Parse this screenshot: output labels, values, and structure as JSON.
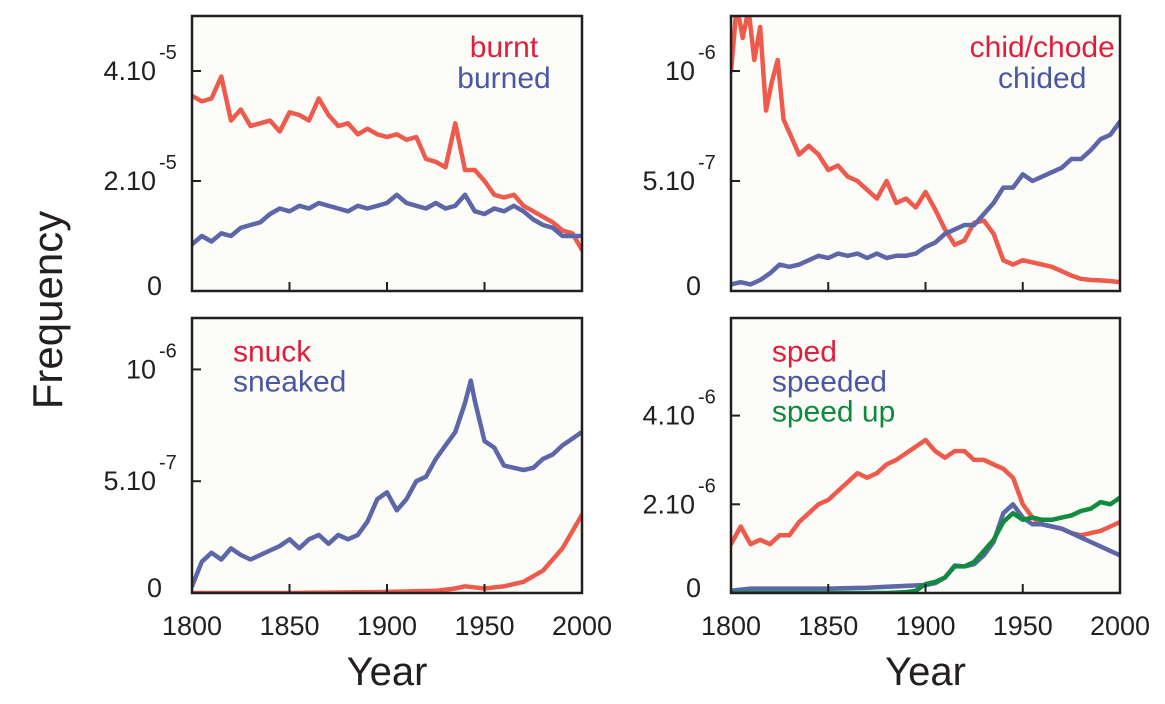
{
  "figure": {
    "ylabel": "Frequency",
    "xlabel": "Year",
    "colors": {
      "red": "#ee5a4c",
      "blue": "#5c66a8",
      "green": "#118c3e",
      "red_text": "#e21d3c",
      "blue_text": "#4a57a3",
      "green_text": "#0f8a3c",
      "plot_bg": "#fcfcf8"
    }
  },
  "chart_data": [
    {
      "type": "line",
      "panel": "top-left",
      "xlim": [
        1800,
        2000
      ],
      "ylim": [
        0,
        5e-05
      ],
      "yticks": [
        {
          "value": 0,
          "base": "0",
          "exp": ""
        },
        {
          "value": 2e-05,
          "base": "2.10",
          "exp": "-5"
        },
        {
          "value": 4e-05,
          "base": "4.10",
          "exp": "-5"
        }
      ],
      "xticks": [
        1800,
        1850,
        1900,
        1950,
        2000
      ],
      "xtick_labels": [],
      "xlabel": "",
      "legend_position": "top-right",
      "series": [
        {
          "name": "burnt",
          "color": "red",
          "x": [
            1800,
            1805,
            1810,
            1815,
            1820,
            1825,
            1830,
            1835,
            1840,
            1845,
            1850,
            1855,
            1860,
            1865,
            1870,
            1875,
            1880,
            1885,
            1890,
            1895,
            1900,
            1905,
            1910,
            1915,
            1920,
            1925,
            1930,
            1935,
            1940,
            1945,
            1950,
            1955,
            1960,
            1965,
            1970,
            1975,
            1980,
            1985,
            1990,
            1995,
            2000
          ],
          "y": [
            3.55e-05,
            3.45e-05,
            3.5e-05,
            3.9e-05,
            3.1e-05,
            3.3e-05,
            3e-05,
            3.05e-05,
            3.1e-05,
            2.9e-05,
            3.25e-05,
            3.2e-05,
            3.1e-05,
            3.5e-05,
            3.2e-05,
            3e-05,
            3.05e-05,
            2.85e-05,
            2.95e-05,
            2.85e-05,
            2.8e-05,
            2.85e-05,
            2.75e-05,
            2.8e-05,
            2.4e-05,
            2.35e-05,
            2.25e-05,
            3.05e-05,
            2.2e-05,
            2.2e-05,
            2e-05,
            1.75e-05,
            1.7e-05,
            1.75e-05,
            1.55e-05,
            1.45e-05,
            1.35e-05,
            1.25e-05,
            1.1e-05,
            1.05e-05,
            7.5e-06
          ]
        },
        {
          "name": "burned",
          "color": "blue",
          "x": [
            1800,
            1805,
            1810,
            1815,
            1820,
            1825,
            1830,
            1835,
            1840,
            1845,
            1850,
            1855,
            1860,
            1865,
            1870,
            1875,
            1880,
            1885,
            1890,
            1895,
            1900,
            1905,
            1910,
            1915,
            1920,
            1925,
            1930,
            1935,
            1940,
            1945,
            1950,
            1955,
            1960,
            1965,
            1970,
            1975,
            1980,
            1985,
            1990,
            1995,
            2000
          ],
          "y": [
            8.5e-06,
            1e-05,
            9e-06,
            1.05e-05,
            1e-05,
            1.15e-05,
            1.2e-05,
            1.25e-05,
            1.4e-05,
            1.5e-05,
            1.45e-05,
            1.55e-05,
            1.5e-05,
            1.6e-05,
            1.55e-05,
            1.5e-05,
            1.45e-05,
            1.55e-05,
            1.5e-05,
            1.55e-05,
            1.6e-05,
            1.75e-05,
            1.6e-05,
            1.55e-05,
            1.5e-05,
            1.6e-05,
            1.5e-05,
            1.55e-05,
            1.75e-05,
            1.45e-05,
            1.4e-05,
            1.5e-05,
            1.45e-05,
            1.55e-05,
            1.45e-05,
            1.3e-05,
            1.2e-05,
            1.15e-05,
            1e-05,
            1e-05,
            1e-05
          ]
        }
      ]
    },
    {
      "type": "line",
      "panel": "top-right",
      "xlim": [
        1800,
        2000
      ],
      "ylim": [
        0,
        1.25e-06
      ],
      "yticks": [
        {
          "value": 0,
          "base": "0",
          "exp": ""
        },
        {
          "value": 5e-07,
          "base": "5.10",
          "exp": "-7"
        },
        {
          "value": 1e-06,
          "base": "10",
          "exp": "-6"
        }
      ],
      "xticks": [
        1800,
        1850,
        1900,
        1950,
        2000
      ],
      "xtick_labels": [],
      "xlabel": "",
      "legend_position": "top-right",
      "series": [
        {
          "name": "chid/chode",
          "color": "red",
          "x": [
            1800,
            1803,
            1806,
            1809,
            1812,
            1815,
            1818,
            1821,
            1824,
            1827,
            1830,
            1835,
            1840,
            1845,
            1850,
            1855,
            1860,
            1865,
            1870,
            1875,
            1880,
            1885,
            1890,
            1895,
            1900,
            1905,
            1910,
            1915,
            1920,
            1925,
            1930,
            1935,
            1940,
            1945,
            1950,
            1955,
            1960,
            1965,
            1970,
            1975,
            1980,
            1985,
            1990,
            1995,
            2000
          ],
          "y": [
            1e-06,
            1.3e-06,
            1.15e-06,
            1.28e-06,
            1.05e-06,
            1.2e-06,
            8.2e-07,
            9.5e-07,
            1.05e-06,
            7.8e-07,
            7.2e-07,
            6.2e-07,
            6.6e-07,
            6.2e-07,
            5.5e-07,
            5.7e-07,
            5.2e-07,
            5e-07,
            4.6e-07,
            4.2e-07,
            5e-07,
            4e-07,
            4.2e-07,
            3.8e-07,
            4.5e-07,
            3.7e-07,
            2.8e-07,
            2.1e-07,
            2.3e-07,
            3.1e-07,
            3.2e-07,
            2.6e-07,
            1.4e-07,
            1.2e-07,
            1.4e-07,
            1.3e-07,
            1.2e-07,
            1.1e-07,
            9e-08,
            7e-08,
            5.5e-08,
            5e-08,
            4.8e-08,
            4.5e-08,
            4e-08
          ]
        },
        {
          "name": "chided",
          "color": "blue",
          "x": [
            1800,
            1805,
            1810,
            1815,
            1820,
            1825,
            1830,
            1835,
            1840,
            1845,
            1850,
            1855,
            1860,
            1865,
            1870,
            1875,
            1880,
            1885,
            1890,
            1895,
            1900,
            1905,
            1910,
            1915,
            1920,
            1925,
            1930,
            1935,
            1940,
            1945,
            1950,
            1955,
            1960,
            1965,
            1970,
            1975,
            1980,
            1985,
            1990,
            1995,
            2000
          ],
          "y": [
            3e-08,
            4e-08,
            3e-08,
            5e-08,
            8e-08,
            1.2e-07,
            1.1e-07,
            1.2e-07,
            1.4e-07,
            1.6e-07,
            1.5e-07,
            1.7e-07,
            1.6e-07,
            1.7e-07,
            1.5e-07,
            1.7e-07,
            1.5e-07,
            1.6e-07,
            1.6e-07,
            1.7e-07,
            2e-07,
            2.2e-07,
            2.6e-07,
            2.8e-07,
            3e-07,
            3e-07,
            3.5e-07,
            4e-07,
            4.7e-07,
            4.7e-07,
            5.3e-07,
            5e-07,
            5.2e-07,
            5.4e-07,
            5.6e-07,
            6e-07,
            6e-07,
            6.4e-07,
            6.9e-07,
            7.1e-07,
            7.7e-07
          ]
        }
      ]
    },
    {
      "type": "line",
      "panel": "bottom-left",
      "xlim": [
        1800,
        2000
      ],
      "ylim": [
        0,
        1.23e-06
      ],
      "yticks": [
        {
          "value": 0,
          "base": "0",
          "exp": ""
        },
        {
          "value": 5e-07,
          "base": "5.10",
          "exp": "-7"
        },
        {
          "value": 1e-06,
          "base": "10",
          "exp": "-6"
        }
      ],
      "xticks": [
        1800,
        1850,
        1900,
        1950,
        2000
      ],
      "xtick_labels": [
        "1800",
        "1850",
        "1900",
        "1950",
        "2000"
      ],
      "xlabel": "Year",
      "legend_position": "top-left",
      "series": [
        {
          "name": "snuck",
          "color": "red",
          "x": [
            1800,
            1850,
            1900,
            1925,
            1935,
            1940,
            1950,
            1960,
            1970,
            1980,
            1990,
            2000
          ],
          "y": [
            0,
            0,
            5e-09,
            1e-08,
            2e-08,
            3e-08,
            2e-08,
            3e-08,
            5e-08,
            1e-07,
            2e-07,
            3.5e-07
          ]
        },
        {
          "name": "sneaked",
          "color": "blue",
          "x": [
            1800,
            1805,
            1810,
            1815,
            1820,
            1825,
            1830,
            1835,
            1840,
            1845,
            1850,
            1855,
            1860,
            1865,
            1870,
            1875,
            1880,
            1885,
            1890,
            1895,
            1900,
            1905,
            1910,
            1915,
            1920,
            1925,
            1930,
            1935,
            1940,
            1943,
            1945,
            1950,
            1955,
            1960,
            1965,
            1970,
            1975,
            1980,
            1985,
            1990,
            1995,
            2000
          ],
          "y": [
            3e-08,
            1.4e-07,
            1.8e-07,
            1.5e-07,
            2e-07,
            1.7e-07,
            1.5e-07,
            1.7e-07,
            1.9e-07,
            2.1e-07,
            2.4e-07,
            2e-07,
            2.4e-07,
            2.6e-07,
            2.2e-07,
            2.6e-07,
            2.4e-07,
            2.6e-07,
            3.2e-07,
            4.2e-07,
            4.5e-07,
            3.7e-07,
            4.2e-07,
            5e-07,
            5.2e-07,
            6e-07,
            6.6e-07,
            7.2e-07,
            8.5e-07,
            9.5e-07,
            8.6e-07,
            6.8e-07,
            6.5e-07,
            5.7e-07,
            5.6e-07,
            5.5e-07,
            5.6e-07,
            6e-07,
            6.2e-07,
            6.6e-07,
            6.9e-07,
            7.2e-07
          ]
        }
      ]
    },
    {
      "type": "line",
      "panel": "bottom-right",
      "xlim": [
        1800,
        2000
      ],
      "ylim": [
        0,
        6.2e-06
      ],
      "yticks": [
        {
          "value": 0,
          "base": "0",
          "exp": ""
        },
        {
          "value": 2e-06,
          "base": "2.10",
          "exp": "-6"
        },
        {
          "value": 4e-06,
          "base": "4.10",
          "exp": "-6"
        }
      ],
      "xticks": [
        1800,
        1850,
        1900,
        1950,
        2000
      ],
      "xtick_labels": [
        "1800",
        "1850",
        "1900",
        "1950",
        "2000"
      ],
      "xlabel": "Year",
      "legend_position": "top-left",
      "series": [
        {
          "name": "sped",
          "color": "red",
          "x": [
            1800,
            1805,
            1810,
            1815,
            1820,
            1825,
            1830,
            1835,
            1840,
            1845,
            1850,
            1855,
            1860,
            1865,
            1870,
            1875,
            1880,
            1885,
            1890,
            1895,
            1900,
            1905,
            1910,
            1915,
            1920,
            1925,
            1930,
            1935,
            1940,
            1945,
            1950,
            1955,
            1960,
            1965,
            1970,
            1975,
            1980,
            1985,
            1990,
            1995,
            2000
          ],
          "y": [
            1.1e-06,
            1.5e-06,
            1.1e-06,
            1.2e-06,
            1.1e-06,
            1.3e-06,
            1.3e-06,
            1.6e-06,
            1.8e-06,
            2e-06,
            2.1e-06,
            2.3e-06,
            2.5e-06,
            2.7e-06,
            2.6e-06,
            2.7e-06,
            2.9e-06,
            3e-06,
            3.15e-06,
            3.3e-06,
            3.45e-06,
            3.2e-06,
            3.05e-06,
            3.2e-06,
            3.2e-06,
            3e-06,
            3e-06,
            2.9e-06,
            2.8e-06,
            2.6e-06,
            2e-06,
            1.7e-06,
            1.55e-06,
            1.5e-06,
            1.45e-06,
            1.35e-06,
            1.3e-06,
            1.35e-06,
            1.4e-06,
            1.5e-06,
            1.6e-06
          ]
        },
        {
          "name": "speeded",
          "color": "blue",
          "x": [
            1800,
            1810,
            1820,
            1830,
            1840,
            1850,
            1860,
            1870,
            1880,
            1890,
            1900,
            1905,
            1910,
            1915,
            1920,
            1925,
            1930,
            1935,
            1940,
            1945,
            1950,
            1955,
            1960,
            1965,
            1970,
            1975,
            1980,
            1985,
            1990,
            1995,
            2000
          ],
          "y": [
            5e-08,
            1e-07,
            1e-07,
            1e-07,
            1e-07,
            1e-07,
            1.1e-07,
            1.2e-07,
            1.4e-07,
            1.6e-07,
            1.8e-07,
            2.2e-07,
            3.5e-07,
            6.2e-07,
            6e-07,
            6.5e-07,
            8.5e-07,
            1.15e-06,
            1.8e-06,
            2e-06,
            1.7e-06,
            1.55e-06,
            1.55e-06,
            1.5e-06,
            1.45e-06,
            1.35e-06,
            1.25e-06,
            1.15e-06,
            1.05e-06,
            9.5e-07,
            8.5e-07
          ]
        },
        {
          "name": "speed up",
          "color": "green",
          "x": [
            1800,
            1850,
            1880,
            1890,
            1895,
            1900,
            1905,
            1910,
            1915,
            1920,
            1925,
            1930,
            1935,
            1940,
            1945,
            1950,
            1955,
            1960,
            1965,
            1970,
            1975,
            1980,
            1985,
            1990,
            1995,
            2000
          ],
          "y": [
            0,
            0,
            0,
            2e-08,
            5e-08,
            2e-07,
            2.5e-07,
            3.5e-07,
            6e-07,
            6e-07,
            7e-07,
            9.5e-07,
            1.2e-06,
            1.6e-06,
            1.8e-06,
            1.65e-06,
            1.7e-06,
            1.65e-06,
            1.65e-06,
            1.7e-06,
            1.75e-06,
            1.85e-06,
            1.9e-06,
            2.05e-06,
            2e-06,
            2.15e-06
          ]
        }
      ]
    }
  ]
}
